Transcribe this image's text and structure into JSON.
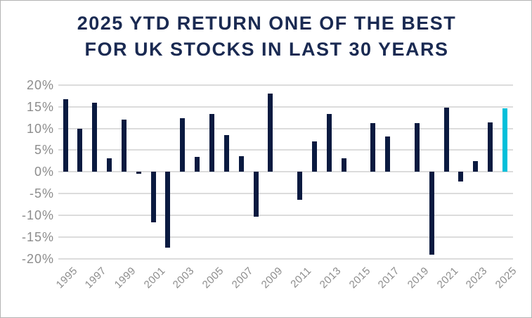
{
  "window": {
    "background_color": "#ffffff",
    "border_color": "#b3b3b3"
  },
  "title": {
    "line1": "2025 YTD RETURN ONE OF THE BEST",
    "line2": "FOR UK STOCKS IN LAST 30 YEARS",
    "color": "#1a2a52"
  },
  "chart_data": {
    "type": "bar",
    "title": "2025 YTD RETURN ONE OF THE BEST FOR UK STOCKS IN LAST 30 YEARS",
    "x": [
      1995,
      1996,
      1997,
      1998,
      1999,
      2000,
      2001,
      2002,
      2003,
      2004,
      2005,
      2006,
      2007,
      2008,
      2009,
      2010,
      2011,
      2012,
      2013,
      2014,
      2015,
      2016,
      2017,
      2018,
      2019,
      2020,
      2021,
      2022,
      2023,
      2024,
      2025
    ],
    "values": [
      16.7,
      10.0,
      16.0,
      3.2,
      12.1,
      -0.4,
      -11.6,
      -17.4,
      12.3,
      3.4,
      13.3,
      8.4,
      3.6,
      -10.3,
      18.1,
      0,
      -6.4,
      7.0,
      13.3,
      3.2,
      0,
      11.3,
      8.2,
      0,
      11.2,
      -19.1,
      14.8,
      -2.3,
      2.4,
      11.4,
      14.7
    ],
    "unit": "%",
    "highlight_year": 2025,
    "bar_color": "#0a1a40",
    "highlight_color": "#00c0da",
    "ylim": [
      -20,
      20
    ],
    "ytick_values": [
      20,
      15,
      10,
      5,
      0,
      -5,
      -10,
      -15,
      -20
    ],
    "ytick_labels": [
      "20%",
      "15%",
      "10%",
      "5%",
      "0%",
      "-5%",
      "-10%",
      "-15%",
      "-20%"
    ],
    "xtick_labels": [
      "1995",
      "1997",
      "1999",
      "2001",
      "2003",
      "2005",
      "2007",
      "2009",
      "2011",
      "2013",
      "2015",
      "2017",
      "2019",
      "2021",
      "2023",
      "2025"
    ],
    "grid": true,
    "grid_color": "#dcdcdc",
    "axis_text_color": "#8c8c8c",
    "legend": "none",
    "xlabel": "",
    "ylabel": ""
  }
}
